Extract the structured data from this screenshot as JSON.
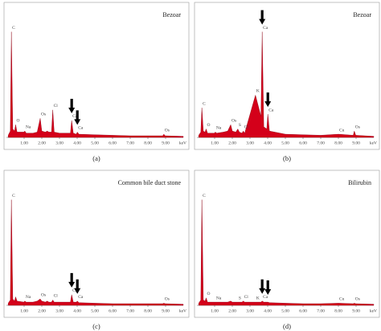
{
  "chart_data": [
    {
      "type": "area",
      "title": "Bezoar",
      "caption": "(a)",
      "xlabel": "keV",
      "color": "#d4001a",
      "x": [
        0.1,
        0.22,
        0.28,
        0.36,
        0.46,
        0.52,
        0.6,
        0.98,
        1.04,
        1.12,
        1.5,
        1.74,
        1.91,
        2.0,
        2.2,
        2.31,
        2.4,
        2.55,
        2.62,
        2.7,
        3.0,
        3.62,
        3.69,
        3.78,
        3.95,
        4.01,
        4.1,
        5.0,
        6.0,
        7.0,
        8.0,
        8.84,
        8.9,
        8.98,
        10.0
      ],
      "values": [
        2,
        6,
        100,
        8,
        6,
        12,
        5,
        5,
        6,
        4,
        4,
        5,
        18,
        6,
        5,
        6,
        5,
        5,
        26,
        5,
        4,
        4,
        16,
        4,
        3,
        5,
        3,
        2.5,
        2,
        1.5,
        1.5,
        1.5,
        3,
        1.5,
        1
      ],
      "xlim": [
        0,
        10
      ],
      "ylim": [
        0,
        105
      ],
      "xticks": [
        {
          "value": 1,
          "label": "1.00"
        },
        {
          "value": 2,
          "label": "2.00"
        },
        {
          "value": 3,
          "label": "3.00"
        },
        {
          "value": 4,
          "label": "4.00"
        },
        {
          "value": 5,
          "label": "5.00"
        },
        {
          "value": 6,
          "label": "6.00"
        },
        {
          "value": 7,
          "label": "7.00"
        },
        {
          "value": 8,
          "label": "8.00"
        },
        {
          "value": 9,
          "label": "9.00"
        }
      ],
      "annotations": [
        {
          "text": "C",
          "x": 0.28
        },
        {
          "text": "O",
          "x": 0.52
        },
        {
          "text": "Na",
          "x": 1.04
        },
        {
          "text": "Os",
          "x": 1.91
        },
        {
          "text": "Cl",
          "x": 2.62
        },
        {
          "text": "Ca",
          "x": 3.69
        },
        {
          "text": "Ca",
          "x": 4.01
        },
        {
          "text": "Os",
          "x": 8.9
        }
      ],
      "arrows": [
        3.69,
        4.01
      ]
    },
    {
      "type": "area",
      "title": "Bezoar",
      "caption": "(b)",
      "xlabel": "keV",
      "color": "#d4001a",
      "x": [
        0.1,
        0.22,
        0.28,
        0.36,
        0.46,
        0.52,
        0.6,
        0.98,
        1.04,
        1.12,
        1.5,
        1.74,
        1.91,
        2.0,
        2.2,
        2.31,
        2.4,
        2.55,
        2.62,
        2.7,
        3.31,
        3.62,
        3.69,
        3.78,
        3.95,
        4.01,
        4.1,
        5.0,
        6.0,
        7.0,
        8.0,
        8.84,
        8.9,
        8.98,
        10.0
      ],
      "values": [
        2,
        5,
        28,
        6,
        5,
        8,
        4,
        4,
        5,
        4,
        5,
        6,
        12,
        6,
        5,
        8,
        5,
        4,
        6,
        4,
        40,
        20,
        100,
        10,
        8,
        22,
        6,
        3,
        2.5,
        2,
        3,
        2,
        6,
        2,
        1
      ],
      "xlim": [
        0,
        10
      ],
      "ylim": [
        0,
        105
      ],
      "xticks": [
        {
          "value": 1,
          "label": "1.00"
        },
        {
          "value": 2,
          "label": "2.00"
        },
        {
          "value": 3,
          "label": "3.00"
        },
        {
          "value": 4,
          "label": "4.00"
        },
        {
          "value": 5,
          "label": "5.00"
        },
        {
          "value": 6,
          "label": "6.00"
        },
        {
          "value": 7,
          "label": "7.00"
        },
        {
          "value": 8,
          "label": "8.00"
        },
        {
          "value": 9,
          "label": "9.00"
        }
      ],
      "annotations": [
        {
          "text": "C",
          "x": 0.28
        },
        {
          "text": "O",
          "x": 0.52
        },
        {
          "text": "Na",
          "x": 1.04
        },
        {
          "text": "Os",
          "x": 1.91
        },
        {
          "text": "S",
          "x": 2.31
        },
        {
          "text": "Cl",
          "x": 2.62
        },
        {
          "text": "K",
          "x": 3.31
        },
        {
          "text": "Ca",
          "x": 3.69
        },
        {
          "text": "Ca",
          "x": 4.01
        },
        {
          "text": "Cu",
          "x": 8.0
        },
        {
          "text": "Os",
          "x": 8.9
        }
      ],
      "arrows": [
        3.69,
        4.01
      ]
    },
    {
      "type": "area",
      "title": "Common bile duct stone",
      "caption": "(c)",
      "xlabel": "keV",
      "color": "#d4001a",
      "x": [
        0.1,
        0.22,
        0.28,
        0.36,
        0.46,
        0.52,
        0.6,
        0.98,
        1.04,
        1.12,
        1.5,
        1.74,
        1.91,
        2.0,
        2.2,
        2.31,
        2.4,
        2.55,
        2.62,
        2.7,
        3.0,
        3.62,
        3.69,
        3.78,
        3.95,
        4.01,
        4.1,
        5.0,
        6.0,
        7.0,
        8.0,
        8.84,
        8.9,
        8.98,
        10.0
      ],
      "values": [
        2,
        5,
        100,
        6,
        4,
        8,
        4,
        3,
        4,
        3,
        3,
        4,
        6,
        4,
        3,
        4,
        3,
        3,
        5,
        3,
        3,
        3,
        10,
        3,
        3,
        4,
        2.5,
        2,
        1.5,
        1.5,
        1.5,
        1.5,
        2,
        1.5,
        1
      ],
      "xlim": [
        0,
        10
      ],
      "ylim": [
        0,
        105
      ],
      "xticks": [
        {
          "value": 1,
          "label": "1.00"
        },
        {
          "value": 2,
          "label": "2.00"
        },
        {
          "value": 3,
          "label": "3.00"
        },
        {
          "value": 4,
          "label": "4.00"
        },
        {
          "value": 5,
          "label": "5.00"
        },
        {
          "value": 6,
          "label": "6.00"
        },
        {
          "value": 7,
          "label": "7.00"
        },
        {
          "value": 8,
          "label": "8.00"
        },
        {
          "value": 9,
          "label": "9.00"
        }
      ],
      "annotations": [
        {
          "text": "C",
          "x": 0.28
        },
        {
          "text": "Na",
          "x": 1.04
        },
        {
          "text": "Os",
          "x": 1.91
        },
        {
          "text": "Cl",
          "x": 2.62
        },
        {
          "text": "Ca",
          "x": 3.69
        },
        {
          "text": "Ca",
          "x": 4.01
        },
        {
          "text": "Os",
          "x": 8.9
        }
      ],
      "arrows": [
        3.69,
        4.01
      ]
    },
    {
      "type": "area",
      "title": "Bilirubin",
      "caption": "(d)",
      "xlabel": "keV",
      "color": "#d4001a",
      "x": [
        0.1,
        0.22,
        0.28,
        0.36,
        0.46,
        0.52,
        0.6,
        0.98,
        1.04,
        1.12,
        1.5,
        1.74,
        1.91,
        2.0,
        2.2,
        2.31,
        2.4,
        2.55,
        2.62,
        2.7,
        3.31,
        3.62,
        3.69,
        3.78,
        3.95,
        4.01,
        4.1,
        5.0,
        6.0,
        7.0,
        8.0,
        8.84,
        8.9,
        8.98,
        10.0
      ],
      "values": [
        2,
        5,
        100,
        5,
        4,
        7,
        3,
        3,
        3,
        3,
        3,
        3,
        4,
        3,
        3,
        3,
        3,
        3,
        4,
        3,
        3,
        3,
        4,
        3,
        3,
        3,
        2.5,
        2,
        1.5,
        1.5,
        2,
        1.5,
        2,
        1.5,
        1
      ],
      "xlim": [
        0,
        10
      ],
      "ylim": [
        0,
        105
      ],
      "xticks": [
        {
          "value": 1,
          "label": "1.00"
        },
        {
          "value": 2,
          "label": "2.00"
        },
        {
          "value": 3,
          "label": "3.00"
        },
        {
          "value": 4,
          "label": "4.00"
        },
        {
          "value": 5,
          "label": "5.00"
        },
        {
          "value": 6,
          "label": "6.00"
        },
        {
          "value": 7,
          "label": "7.00"
        },
        {
          "value": 8,
          "label": "8.00"
        },
        {
          "value": 9,
          "label": "9.00"
        }
      ],
      "annotations": [
        {
          "text": "C",
          "x": 0.28
        },
        {
          "text": "O",
          "x": 0.52
        },
        {
          "text": "Na",
          "x": 1.04
        },
        {
          "text": "S",
          "x": 2.31
        },
        {
          "text": "Cl",
          "x": 2.62
        },
        {
          "text": "K",
          "x": 3.31
        },
        {
          "text": "Ca",
          "x": 3.69
        },
        {
          "text": "Cu",
          "x": 8.0
        },
        {
          "text": "Os",
          "x": 8.9
        }
      ],
      "arrows": [
        3.69,
        4.01
      ]
    }
  ]
}
